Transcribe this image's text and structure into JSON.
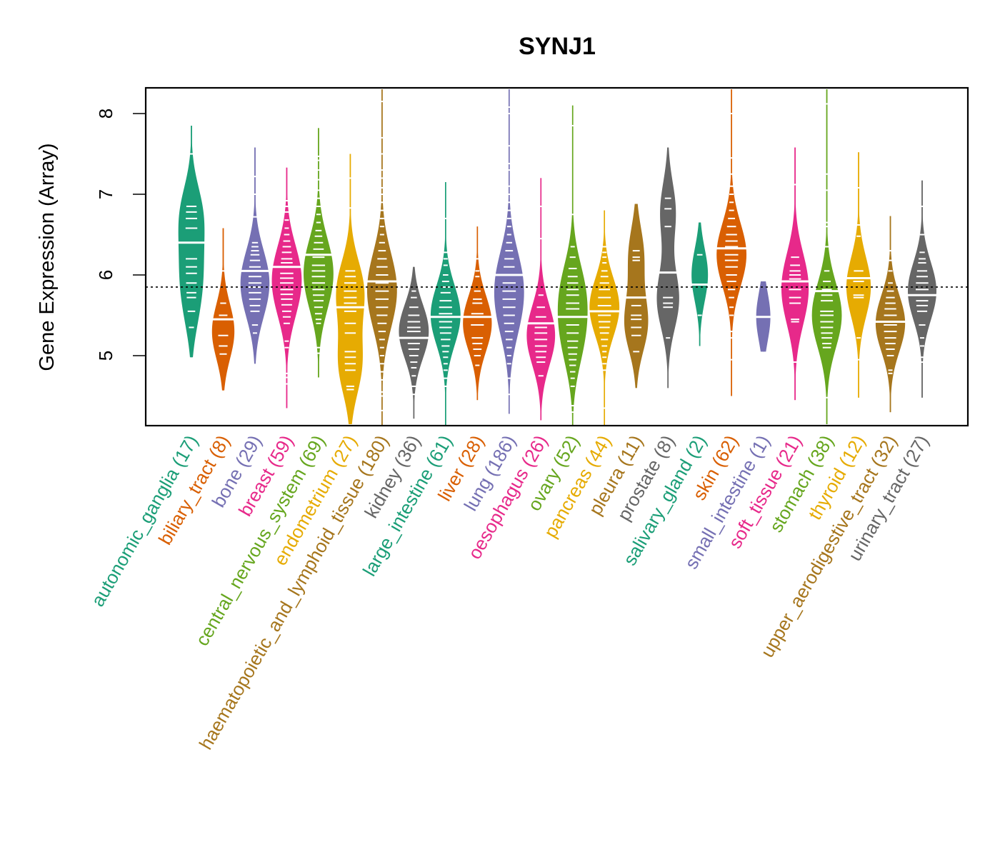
{
  "chart_data": {
    "type": "violin",
    "title": "SYNJ1",
    "xlabel": "",
    "ylabel": "Gene Expression (Array)",
    "ylim": [
      4.1,
      8.3
    ],
    "yticks": [
      5,
      6,
      7,
      8
    ],
    "reference_line": 5.85,
    "grid": false,
    "legend": "none",
    "categories": [
      {
        "name": "autonomic_ganglia",
        "n": 17,
        "color": "#1B9E77",
        "min": 4.98,
        "max": 7.85,
        "median": 6.4,
        "modes": [
          [
            6.75,
            1.0
          ],
          [
            6.1,
            0.75
          ],
          [
            5.6,
            0.55
          ]
        ],
        "points": [
          7.5,
          6.85,
          6.78,
          6.7,
          6.58,
          6.2,
          6.1,
          6.02,
          5.9,
          5.78,
          5.72,
          5.55,
          5.35
        ]
      },
      {
        "name": "biliary_tract",
        "n": 8,
        "color": "#D95F02",
        "min": 4.57,
        "max": 6.58,
        "median": 5.45,
        "modes": [
          [
            5.3,
            1.0
          ]
        ],
        "points": [
          6.05,
          5.65,
          5.5,
          5.25,
          5.12,
          5.02
        ]
      },
      {
        "name": "bone",
        "n": 29,
        "color": "#7570B3",
        "min": 4.9,
        "max": 7.58,
        "median": 6.05,
        "modes": [
          [
            6.05,
            1.0
          ],
          [
            5.7,
            0.85
          ]
        ],
        "points": [
          7.22,
          7.0,
          6.72,
          6.4,
          6.35,
          6.3,
          6.25,
          6.18,
          6.1,
          5.98,
          5.9,
          5.85,
          5.78,
          5.7,
          5.62,
          5.55,
          5.38,
          5.28
        ]
      },
      {
        "name": "breast",
        "n": 59,
        "color": "#E7298A",
        "min": 4.35,
        "max": 7.33,
        "median": 6.1,
        "modes": [
          [
            6.1,
            1.0
          ],
          [
            5.7,
            0.8
          ]
        ],
        "points": [
          6.92,
          6.85,
          6.78,
          6.68,
          6.58,
          6.5,
          6.42,
          6.35,
          6.28,
          6.2,
          6.15,
          6.02,
          5.96,
          5.9,
          5.82,
          5.76,
          5.7,
          5.63,
          5.55,
          5.48,
          5.4,
          5.18,
          5.1,
          4.78,
          4.73,
          4.65
        ]
      },
      {
        "name": "central_nervous_system",
        "n": 69,
        "color": "#66A61E",
        "min": 4.73,
        "max": 7.82,
        "median": 6.25,
        "modes": [
          [
            6.2,
            1.0
          ],
          [
            5.8,
            0.9
          ]
        ],
        "points": [
          7.47,
          7.42,
          7.3,
          7.18,
          7.05,
          6.95,
          6.85,
          6.75,
          6.65,
          6.55,
          6.48,
          6.4,
          6.32,
          6.22,
          6.12,
          6.05,
          5.98,
          5.9,
          5.82,
          5.75,
          5.68,
          5.6,
          5.52,
          5.45,
          5.4,
          5.1,
          5.03
        ]
      },
      {
        "name": "endometrium",
        "n": 27,
        "color": "#E6AB02",
        "min": 4.15,
        "max": 7.5,
        "median": 5.6,
        "modes": [
          [
            5.8,
            1.0
          ],
          [
            4.9,
            0.85
          ]
        ],
        "points": [
          7.2,
          6.83,
          6.05,
          5.98,
          5.9,
          5.8,
          5.72,
          5.65,
          5.55,
          5.4,
          5.28,
          5.05,
          4.98,
          4.9,
          4.82,
          4.62,
          4.58
        ]
      },
      {
        "name": "haematopoietic_and_lymphoid_tissue",
        "n": 180,
        "color": "#A6761D",
        "min": 4.1,
        "max": 8.3,
        "median": 5.92,
        "modes": [
          [
            6.0,
            1.0
          ],
          [
            5.6,
            0.95
          ]
        ],
        "points": [
          8.15,
          7.7,
          7.5,
          7.3,
          7.2,
          7.08,
          7.0,
          6.9,
          6.8,
          6.7,
          6.6,
          6.5,
          6.4,
          6.3,
          6.2,
          6.1,
          6.0,
          5.9,
          5.8,
          5.7,
          5.6,
          5.5,
          5.4,
          5.3,
          5.2,
          5.1,
          5.0,
          4.9,
          4.8,
          4.7,
          4.55,
          4.5,
          4.32
        ]
      },
      {
        "name": "kidney",
        "n": 36,
        "color": "#666666",
        "min": 4.22,
        "max": 6.1,
        "median": 5.22,
        "modes": [
          [
            5.3,
            1.0
          ]
        ],
        "points": [
          5.8,
          5.72,
          5.6,
          5.5,
          5.42,
          5.35,
          5.3,
          5.15,
          5.08,
          5.0,
          4.92,
          4.85,
          4.75,
          4.62,
          4.52
        ]
      },
      {
        "name": "large_intestine",
        "n": 61,
        "color": "#1B9E77",
        "min": 4.12,
        "max": 7.15,
        "median": 5.48,
        "modes": [
          [
            5.5,
            1.0
          ]
        ],
        "points": [
          6.7,
          6.28,
          6.2,
          6.12,
          6.0,
          5.92,
          5.85,
          5.78,
          5.68,
          5.6,
          5.52,
          5.42,
          5.35,
          5.28,
          5.2,
          5.12,
          5.05,
          4.98,
          4.9,
          4.82,
          4.72,
          4.62
        ]
      },
      {
        "name": "liver",
        "n": 28,
        "color": "#D95F02",
        "min": 4.45,
        "max": 6.6,
        "median": 5.48,
        "modes": [
          [
            5.4,
            1.0
          ]
        ],
        "points": [
          6.2,
          6.05,
          5.98,
          5.8,
          5.7,
          5.65,
          5.52,
          5.38,
          5.22,
          5.15,
          5.08,
          5.0,
          4.88
        ]
      },
      {
        "name": "lung",
        "n": 186,
        "color": "#7570B3",
        "min": 4.28,
        "max": 8.3,
        "median": 6.0,
        "modes": [
          [
            6.0,
            1.0
          ],
          [
            5.5,
            0.85
          ]
        ],
        "points": [
          8.08,
          8.0,
          7.6,
          7.38,
          7.3,
          7.1,
          7.0,
          6.9,
          6.8,
          6.7,
          6.6,
          6.5,
          6.4,
          6.3,
          6.2,
          6.1,
          6.0,
          5.9,
          5.8,
          5.7,
          5.6,
          5.5,
          5.4,
          5.3,
          5.2,
          5.1,
          5.0,
          4.9,
          4.72,
          4.52
        ]
      },
      {
        "name": "oesophagus",
        "n": 26,
        "color": "#E7298A",
        "min": 4.2,
        "max": 7.2,
        "median": 5.4,
        "modes": [
          [
            5.25,
            1.0
          ]
        ],
        "points": [
          6.85,
          6.45,
          5.75,
          5.6,
          5.48,
          5.35,
          5.28,
          5.2,
          5.12,
          5.05,
          4.98,
          4.92,
          4.75
        ]
      },
      {
        "name": "ovary",
        "n": 52,
        "color": "#66A61E",
        "min": 4.12,
        "max": 8.1,
        "median": 5.48,
        "modes": [
          [
            5.8,
            1.0
          ],
          [
            5.2,
            0.85
          ]
        ],
        "points": [
          7.85,
          6.75,
          6.35,
          6.22,
          6.08,
          5.98,
          5.9,
          5.82,
          5.75,
          5.65,
          5.58,
          5.38,
          5.28,
          5.18,
          5.1,
          5.02,
          4.95,
          4.88,
          4.8,
          4.72,
          4.62,
          4.38,
          4.3
        ]
      },
      {
        "name": "pancreas",
        "n": 44,
        "color": "#E6AB02",
        "min": 4.12,
        "max": 6.8,
        "median": 5.55,
        "modes": [
          [
            5.6,
            1.0
          ]
        ],
        "points": [
          6.35,
          6.28,
          6.22,
          6.15,
          6.05,
          5.98,
          5.9,
          5.82,
          5.72,
          5.62,
          5.5,
          5.42,
          5.35,
          5.28,
          5.2,
          5.12,
          5.05,
          4.98,
          4.9,
          4.82,
          4.35
        ]
      },
      {
        "name": "pleura",
        "n": 11,
        "color": "#A6761D",
        "min": 4.6,
        "max": 6.88,
        "median": 5.72,
        "modes": [
          [
            6.25,
            0.65
          ],
          [
            5.4,
            1.0
          ]
        ],
        "points": [
          6.3,
          6.22,
          6.18,
          5.62,
          5.5,
          5.45,
          5.35,
          5.25,
          5.05
        ]
      },
      {
        "name": "prostate",
        "n": 8,
        "color": "#666666",
        "min": 4.6,
        "max": 7.58,
        "median": 6.03,
        "modes": [
          [
            6.78,
            0.7
          ],
          [
            5.7,
            1.0
          ]
        ],
        "points": [
          6.95,
          6.82,
          6.6,
          5.72,
          5.65,
          5.6,
          5.22
        ]
      },
      {
        "name": "salivary_gland",
        "n": 2,
        "color": "#1B9E77",
        "min": 5.12,
        "max": 6.65,
        "median": 5.88,
        "modes": [
          [
            6.0,
            1.0
          ]
        ],
        "points": [
          6.25,
          5.5
        ]
      },
      {
        "name": "skin",
        "n": 62,
        "color": "#D95F02",
        "min": 4.5,
        "max": 8.3,
        "median": 6.33,
        "modes": [
          [
            6.25,
            1.0
          ]
        ],
        "points": [
          8.0,
          7.45,
          7.25,
          7.1,
          7.0,
          6.9,
          6.8,
          6.7,
          6.6,
          6.5,
          6.42,
          6.35,
          6.25,
          6.18,
          6.1,
          6.0,
          5.92,
          5.82,
          5.72,
          5.6,
          5.5,
          5.3,
          5.22,
          4.95
        ]
      },
      {
        "name": "small_intestine",
        "n": 1,
        "color": "#7570B3",
        "min": 5.05,
        "max": 5.92,
        "median": 5.48,
        "modes": [
          [
            5.48,
            1.0
          ]
        ],
        "points": [
          5.48
        ]
      },
      {
        "name": "soft_tissue",
        "n": 21,
        "color": "#E7298A",
        "min": 4.45,
        "max": 7.58,
        "median": 5.92,
        "modes": [
          [
            6.0,
            1.0
          ],
          [
            5.6,
            0.8
          ]
        ],
        "points": [
          7.12,
          6.22,
          6.12,
          6.05,
          6.0,
          5.95,
          5.82,
          5.72,
          5.65,
          5.45,
          5.42,
          4.92
        ]
      },
      {
        "name": "stomach",
        "n": 38,
        "color": "#66A61E",
        "min": 4.15,
        "max": 8.3,
        "median": 5.8,
        "modes": [
          [
            5.5,
            1.0
          ]
        ],
        "points": [
          8.12,
          7.25,
          7.05,
          6.65,
          6.6,
          6.35,
          6.05,
          5.92,
          5.82,
          5.75,
          5.68,
          5.55,
          5.5,
          5.42,
          5.35,
          5.28,
          5.22,
          5.15,
          5.1,
          4.48
        ]
      },
      {
        "name": "thyroid",
        "n": 12,
        "color": "#E6AB02",
        "min": 4.48,
        "max": 7.52,
        "median": 5.96,
        "modes": [
          [
            5.85,
            1.0
          ]
        ],
        "points": [
          7.08,
          6.62,
          6.48,
          6.05,
          5.92,
          5.75,
          5.72,
          5.22,
          4.95
        ]
      },
      {
        "name": "upper_aerodigestive_tract",
        "n": 32,
        "color": "#A6761D",
        "min": 4.3,
        "max": 6.73,
        "median": 5.42,
        "modes": [
          [
            5.4,
            1.0
          ]
        ],
        "points": [
          6.3,
          6.18,
          6.05,
          5.9,
          5.8,
          5.72,
          5.65,
          5.58,
          5.5,
          5.38,
          5.3,
          5.22,
          5.15,
          5.08,
          5.0,
          4.82,
          4.78
        ]
      },
      {
        "name": "urinary_tract",
        "n": 27,
        "color": "#666666",
        "min": 4.48,
        "max": 7.17,
        "median": 5.75,
        "modes": [
          [
            5.8,
            1.0
          ]
        ],
        "points": [
          6.85,
          6.5,
          6.28,
          6.2,
          6.15,
          6.05,
          5.98,
          5.9,
          5.82,
          5.68,
          5.62,
          5.55,
          5.38,
          5.22,
          5.12,
          4.98,
          4.92
        ]
      }
    ]
  }
}
